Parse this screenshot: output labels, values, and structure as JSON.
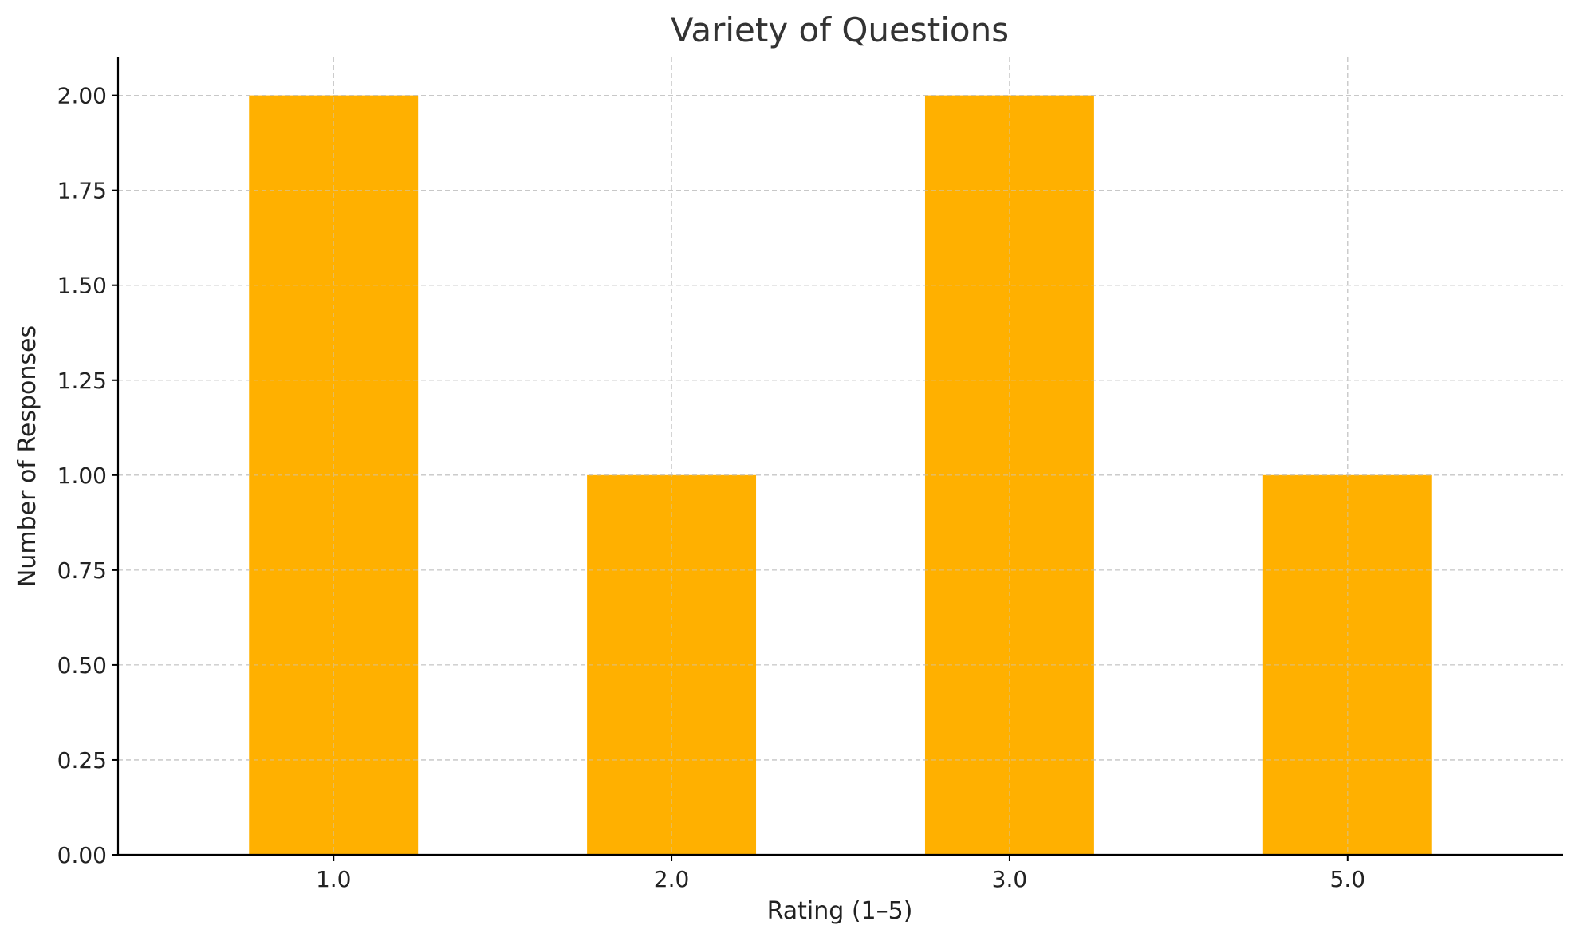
{
  "chart_data": {
    "type": "bar",
    "title": "Variety of Questions",
    "xlabel": "Rating (1–5)",
    "ylabel": "Number of Responses",
    "categories": [
      "1.0",
      "2.0",
      "3.0",
      "5.0"
    ],
    "values": [
      2,
      1,
      2,
      1
    ],
    "ylim": [
      0,
      2.1
    ],
    "yticks": [
      "0.00",
      "0.25",
      "0.50",
      "0.75",
      "1.00",
      "1.25",
      "1.50",
      "1.75",
      "2.00"
    ],
    "bar_color": "#FFB000",
    "grid": true
  }
}
